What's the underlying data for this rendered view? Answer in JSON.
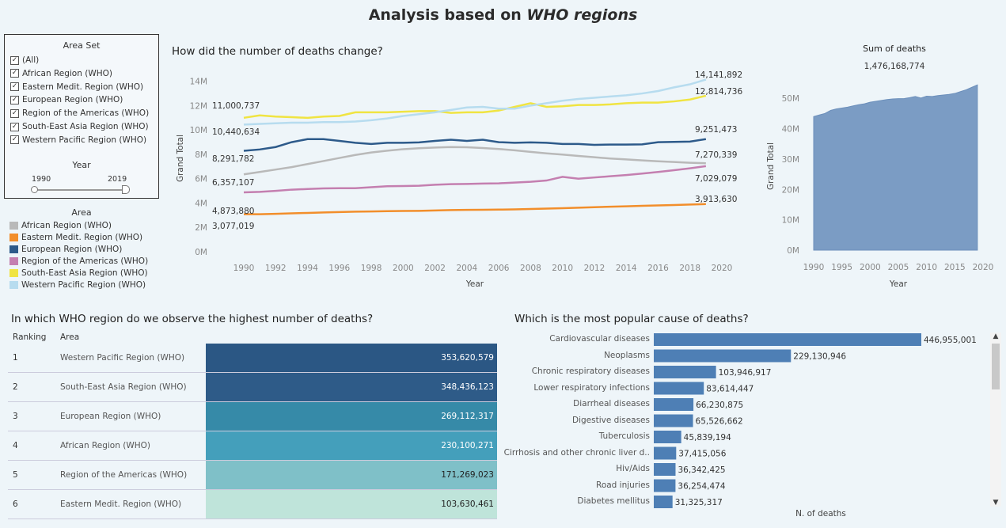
{
  "dashboard": {
    "title_prefix": "Analysis based on ",
    "title_emphasis": "WHO regions"
  },
  "filter": {
    "title": "Area Set",
    "items": [
      {
        "label": "(All)",
        "checked": true
      },
      {
        "label": "African Region (WHO)",
        "checked": true
      },
      {
        "label": "Eastern Medit. Region (WHO)",
        "checked": true
      },
      {
        "label": "European Region (WHO)",
        "checked": true
      },
      {
        "label": "Region of the Americas (WHO)",
        "checked": true
      },
      {
        "label": "South-East Asia Region (WHO)",
        "checked": true
      },
      {
        "label": "Western Pacific Region (WHO)",
        "checked": true
      }
    ],
    "year_title": "Year",
    "year_min": "1990",
    "year_max": "2019"
  },
  "legend": {
    "title": "Area",
    "items": [
      {
        "label": "African Region (WHO)",
        "color": "#b9b9b9"
      },
      {
        "label": "Eastern Medit. Region (WHO)",
        "color": "#f28e2b"
      },
      {
        "label": "European Region (WHO)",
        "color": "#2d5a8a"
      },
      {
        "label": "Region of the Americas (WHO)",
        "color": "#c47fb0"
      },
      {
        "label": "South-East Asia Region (WHO)",
        "color": "#f0e442"
      },
      {
        "label": "Western Pacific Region (WHO)",
        "color": "#b7dcef"
      }
    ]
  },
  "sections": {
    "line_title": "How did the number of deaths change?",
    "area_title": "Sum of deaths",
    "area_total": "1,476,168,774",
    "table_title": "In which WHO region do we observe the highest number of deaths?",
    "bar_title": "Which is the most popular cause of deaths?"
  },
  "chart_data": [
    {
      "type": "line",
      "title": "How did the number of deaths change?",
      "xlabel": "Year",
      "ylabel": "Grand Total",
      "ylim": [
        0,
        14500000
      ],
      "yticks": [
        "0M",
        "2M",
        "4M",
        "6M",
        "8M",
        "10M",
        "12M",
        "14M"
      ],
      "xticks": [
        "1990",
        "1992",
        "1994",
        "1996",
        "1998",
        "2000",
        "2002",
        "2004",
        "2006",
        "2008",
        "2010",
        "2012",
        "2014",
        "2016",
        "2018",
        "2020"
      ],
      "x": [
        1990,
        1991,
        1992,
        1993,
        1994,
        1995,
        1996,
        1997,
        1998,
        1999,
        2000,
        2001,
        2002,
        2003,
        2004,
        2005,
        2006,
        2007,
        2008,
        2009,
        2010,
        2011,
        2012,
        2013,
        2014,
        2015,
        2016,
        2017,
        2018,
        2019
      ],
      "series": [
        {
          "name": "African Region (WHO)",
          "color": "#b9b9b9",
          "start_label": "6,357,107",
          "end_label": "7,270,339",
          "values": [
            6357107,
            6550000,
            6750000,
            6950000,
            7200000,
            7450000,
            7700000,
            7950000,
            8150000,
            8300000,
            8420000,
            8500000,
            8560000,
            8600000,
            8580000,
            8520000,
            8440000,
            8330000,
            8200000,
            8080000,
            7980000,
            7870000,
            7760000,
            7660000,
            7580000,
            7500000,
            7430000,
            7370000,
            7310000,
            7270339
          ]
        },
        {
          "name": "Eastern Medit. Region (WHO)",
          "color": "#f28e2b",
          "start_label": "3,077,019",
          "end_label": "3,913,630",
          "values": [
            3077019,
            3080000,
            3110000,
            3150000,
            3190000,
            3230000,
            3260000,
            3290000,
            3310000,
            3330000,
            3350000,
            3360000,
            3390000,
            3420000,
            3440000,
            3450000,
            3460000,
            3480000,
            3510000,
            3540000,
            3580000,
            3620000,
            3660000,
            3700000,
            3730000,
            3770000,
            3800000,
            3840000,
            3880000,
            3913630
          ]
        },
        {
          "name": "European Region (WHO)",
          "color": "#2d5a8a",
          "start_label": "8,291,782",
          "end_label": "9,251,473",
          "values": [
            8291782,
            8400000,
            8600000,
            9000000,
            9250000,
            9250000,
            9100000,
            8950000,
            8850000,
            8950000,
            8950000,
            8980000,
            9100000,
            9200000,
            9100000,
            9200000,
            9000000,
            8950000,
            8980000,
            8950000,
            8850000,
            8850000,
            8780000,
            8800000,
            8800000,
            8820000,
            9000000,
            9020000,
            9050000,
            9251473
          ]
        },
        {
          "name": "Region of the Americas (WHO)",
          "color": "#c47fb0",
          "start_label": "4,873,880",
          "end_label": "7,029,079",
          "values": [
            4873880,
            4920000,
            5000000,
            5100000,
            5150000,
            5200000,
            5220000,
            5220000,
            5300000,
            5380000,
            5400000,
            5420000,
            5500000,
            5550000,
            5570000,
            5600000,
            5620000,
            5680000,
            5750000,
            5850000,
            6150000,
            6000000,
            6100000,
            6200000,
            6300000,
            6420000,
            6550000,
            6700000,
            6850000,
            7029079
          ]
        },
        {
          "name": "South-East Asia Region (WHO)",
          "color": "#f0e442",
          "start_label": "11,000,737",
          "end_label": "12,814,736",
          "values": [
            11000737,
            11200000,
            11100000,
            11050000,
            11000000,
            11100000,
            11150000,
            11450000,
            11450000,
            11450000,
            11500000,
            11550000,
            11550000,
            11400000,
            11450000,
            11450000,
            11600000,
            11900000,
            12200000,
            11900000,
            11950000,
            12050000,
            12050000,
            12100000,
            12200000,
            12250000,
            12250000,
            12350000,
            12500000,
            12814736
          ]
        },
        {
          "name": "Western Pacific Region (WHO)",
          "color": "#b7dcef",
          "start_label": "10,440,634",
          "end_label": "14,141,892",
          "values": [
            10440634,
            10500000,
            10550000,
            10600000,
            10600000,
            10650000,
            10650000,
            10700000,
            10800000,
            10950000,
            11150000,
            11300000,
            11450000,
            11650000,
            11850000,
            11900000,
            11750000,
            11750000,
            12000000,
            12200000,
            12400000,
            12550000,
            12650000,
            12750000,
            12850000,
            13000000,
            13200000,
            13500000,
            13750000,
            14141892
          ]
        }
      ]
    },
    {
      "type": "area",
      "title": "Sum of deaths",
      "subtitle": "1,476,168,774",
      "xlabel": "Year",
      "ylabel": "Grand Total",
      "ylim": [
        0,
        55000000
      ],
      "yticks": [
        "0M",
        "10M",
        "20M",
        "30M",
        "40M",
        "50M"
      ],
      "xticks": [
        "1990",
        "1995",
        "2000",
        "2005",
        "2010",
        "2015",
        "2020"
      ],
      "color": "#7b9cc4",
      "x": [
        1990,
        1991,
        1992,
        1993,
        1994,
        1995,
        1996,
        1997,
        1998,
        1999,
        2000,
        2001,
        2002,
        2003,
        2004,
        2005,
        2006,
        2007,
        2008,
        2009,
        2010,
        2011,
        2012,
        2013,
        2014,
        2015,
        2016,
        2017,
        2018,
        2019
      ],
      "values": [
        44000000,
        44500000,
        45000000,
        46000000,
        46500000,
        46800000,
        47100000,
        47500000,
        47900000,
        48200000,
        48700000,
        49000000,
        49300000,
        49600000,
        49800000,
        49900000,
        49900000,
        50200000,
        50600000,
        50100000,
        50700000,
        50600000,
        50900000,
        51100000,
        51300000,
        51600000,
        52200000,
        52800000,
        53600000,
        54400000
      ]
    },
    {
      "type": "table",
      "title": "In which WHO region do we observe the highest number of deaths?",
      "columns": [
        "Ranking",
        "Area"
      ],
      "rows": [
        {
          "rank": "1",
          "area": "Western Pacific Region (WHO)",
          "value": "353,620,579",
          "color": "#2b5784",
          "text": "#ffffff"
        },
        {
          "rank": "2",
          "area": "South-East Asia Region (WHO)",
          "value": "348,436,123",
          "color": "#2e5b88",
          "text": "#ffffff"
        },
        {
          "rank": "3",
          "area": "European Region (WHO)",
          "value": "269,112,317",
          "color": "#368aa8",
          "text": "#ffffff"
        },
        {
          "rank": "4",
          "area": "African Region (WHO)",
          "value": "230,100,271",
          "color": "#449fbb",
          "text": "#ffffff"
        },
        {
          "rank": "5",
          "area": "Region of the Americas (WHO)",
          "value": "171,269,023",
          "color": "#7fc0c8",
          "text": "#222222"
        },
        {
          "rank": "6",
          "area": "Eastern Medit. Region (WHO)",
          "value": "103,630,461",
          "color": "#bfe4da",
          "text": "#222222"
        }
      ]
    },
    {
      "type": "bar",
      "title": "Which is the most popular cause of deaths?",
      "xlabel": "N. of deaths",
      "color": "#4e7fb5",
      "xlim": [
        0,
        446955001
      ],
      "categories": [
        "Cardiovascular diseases",
        "Neoplasms",
        "Chronic respiratory diseases",
        "Lower respiratory infections",
        "Diarrheal diseases",
        "Digestive diseases",
        "Tuberculosis",
        "Cirrhosis and other chronic liver d..",
        "Hiv/Aids",
        "Road injuries",
        "Diabetes mellitus"
      ],
      "values": [
        446955001,
        229130946,
        103946917,
        83614447,
        66230875,
        65526662,
        45839194,
        37415056,
        36342425,
        36254474,
        31325317
      ],
      "labels": [
        "446,955,001",
        "229,130,946",
        "103,946,917",
        "83,614,447",
        "66,230,875",
        "65,526,662",
        "45,839,194",
        "37,415,056",
        "36,342,425",
        "36,254,474",
        "31,325,317"
      ]
    }
  ],
  "scroll": {
    "up": "▲",
    "down": "▼"
  }
}
